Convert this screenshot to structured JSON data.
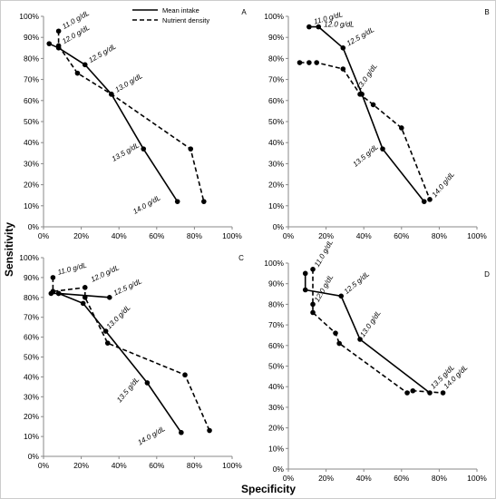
{
  "figure": {
    "ylabel": "Sensitivity",
    "xlabel": "Specificity"
  },
  "legend": {
    "items": [
      {
        "label": "Mean intake",
        "style": "solid"
      },
      {
        "label": "Nutrient  density",
        "style": "dashed"
      }
    ]
  },
  "chart_data": [
    {
      "type": "line",
      "panel": "A",
      "xlim": [
        0,
        100
      ],
      "ylim": [
        0,
        100
      ],
      "x_ticks": [
        "0%",
        "20%",
        "40%",
        "60%",
        "80%",
        "100%"
      ],
      "y_ticks": [
        "0%",
        "10%",
        "20%",
        "30%",
        "40%",
        "50%",
        "60%",
        "70%",
        "80%",
        "90%",
        "100%"
      ],
      "series": [
        {
          "name": "Mean intake",
          "style": "solid",
          "points": [
            [
              3,
              87
            ],
            [
              8,
              85
            ],
            [
              22,
              77
            ],
            [
              36,
              63
            ],
            [
              53,
              37
            ],
            [
              71,
              12
            ]
          ]
        },
        {
          "name": "Nutrient  density",
          "style": "dashed",
          "points": [
            [
              8,
              93
            ],
            [
              8,
              86
            ],
            [
              18,
              73
            ],
            [
              36,
              63
            ],
            [
              78,
              37
            ],
            [
              85,
              12
            ]
          ]
        }
      ],
      "point_labels": [
        "11.0 g/dL",
        "12.0 g/dL",
        "12.5 g/dL",
        "13.0 g/dL",
        "13.5 g/dL",
        "14.0 g/dL"
      ]
    },
    {
      "type": "line",
      "panel": "B",
      "xlim": [
        0,
        100
      ],
      "ylim": [
        0,
        100
      ],
      "x_ticks": [
        "0%",
        "20%",
        "40%",
        "60%",
        "80%",
        "100%"
      ],
      "y_ticks": [
        "0%",
        "10%",
        "20%",
        "30%",
        "40%",
        "50%",
        "60%",
        "70%",
        "80%",
        "90%",
        "100%"
      ],
      "series": [
        {
          "name": "Mean intake",
          "style": "solid",
          "points": [
            [
              11,
              95
            ],
            [
              16,
              95
            ],
            [
              29,
              85
            ],
            [
              39,
              63
            ],
            [
              50,
              37
            ],
            [
              72,
              12
            ]
          ]
        },
        {
          "name": "Nutrient  density",
          "style": "dashed",
          "points": [
            [
              6,
              78
            ],
            [
              11,
              78
            ],
            [
              15,
              78
            ],
            [
              29,
              75
            ],
            [
              38,
              63
            ],
            [
              45,
              58
            ],
            [
              60,
              47
            ],
            [
              75,
              13
            ]
          ]
        }
      ],
      "point_labels": [
        "11.0 g/dL",
        "12.0 g/dL",
        "12.5 g/dL",
        "13.0 g/dL",
        "13.5 g/dL",
        "14.0 g/dL"
      ]
    },
    {
      "type": "line",
      "panel": "C",
      "xlim": [
        0,
        100
      ],
      "ylim": [
        0,
        100
      ],
      "x_ticks": [
        "0%",
        "20%",
        "40%",
        "60%",
        "80%",
        "100%"
      ],
      "y_ticks": [
        "0%",
        "10%",
        "20%",
        "30%",
        "40%",
        "50%",
        "60%",
        "70%",
        "80%",
        "90%",
        "100%"
      ],
      "series": [
        {
          "name": "Mean intake",
          "style": "solid",
          "points": [
            [
              4,
              82
            ],
            [
              8,
              82
            ],
            [
              35,
              80
            ],
            [
              8,
              82
            ],
            [
              21,
              77
            ],
            [
              33,
              63
            ],
            [
              55,
              37
            ],
            [
              73,
              12
            ]
          ]
        },
        {
          "name": "Nutrient  density",
          "style": "dashed",
          "points": [
            [
              5,
              90
            ],
            [
              5,
              83
            ],
            [
              22,
              85
            ],
            [
              22,
              80
            ],
            [
              34,
              57
            ],
            [
              75,
              41
            ],
            [
              88,
              13
            ]
          ]
        }
      ],
      "point_labels": [
        "11.0 g/dL",
        "12.0 g/dL",
        "12.5 g/dL",
        "13.0 g/dL",
        "13.5 g/dL",
        "14.0 g/dL"
      ]
    },
    {
      "type": "line",
      "panel": "D",
      "xlim": [
        0,
        100
      ],
      "ylim": [
        0,
        100
      ],
      "x_ticks": [
        "0%",
        "20%",
        "40%",
        "60%",
        "80%",
        "100%"
      ],
      "y_ticks": [
        "0%",
        "10%",
        "20%",
        "30%",
        "40%",
        "50%",
        "60%",
        "70%",
        "80%",
        "90%",
        "100%"
      ],
      "series": [
        {
          "name": "Mean intake",
          "style": "solid",
          "points": [
            [
              9,
              95
            ],
            [
              9,
              87
            ],
            [
              28,
              84
            ],
            [
              38,
              63
            ],
            [
              75,
              37
            ]
          ]
        },
        {
          "name": "Nutrient  density",
          "style": "dashed",
          "points": [
            [
              13,
              97
            ],
            [
              13,
              80
            ],
            [
              13,
              76
            ],
            [
              25,
              66
            ],
            [
              27,
              61
            ],
            [
              63,
              37
            ],
            [
              66,
              38
            ],
            [
              82,
              37
            ]
          ]
        }
      ],
      "point_labels": [
        "11.0 g/dL",
        "12.0 g/dL",
        "12.5 g/dL",
        "13.0 g/dL",
        "13.5 g/dL",
        "14.0 g/dL"
      ]
    }
  ]
}
